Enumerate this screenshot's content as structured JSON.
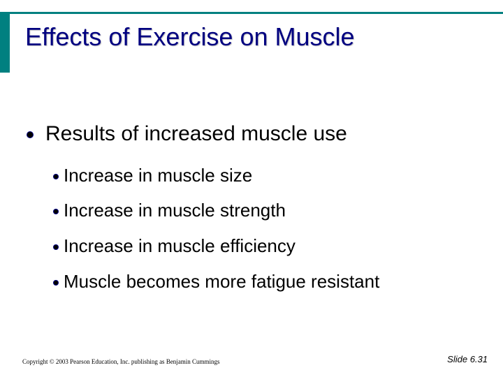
{
  "slide": {
    "title": "Effects of Exercise on Muscle",
    "bullet": "Results of increased muscle use",
    "sub_bullets": [
      "Increase in muscle size",
      "Increase in muscle strength",
      "Increase in muscle efficiency",
      "Muscle becomes more fatigue resistant"
    ],
    "footer": "Copyright © 2003 Pearson Education, Inc. publishing as Benjamin Cummings",
    "slide_number": "Slide 6.31"
  },
  "colors": {
    "accent": "#008080",
    "title": "#000080",
    "text": "#000000"
  }
}
